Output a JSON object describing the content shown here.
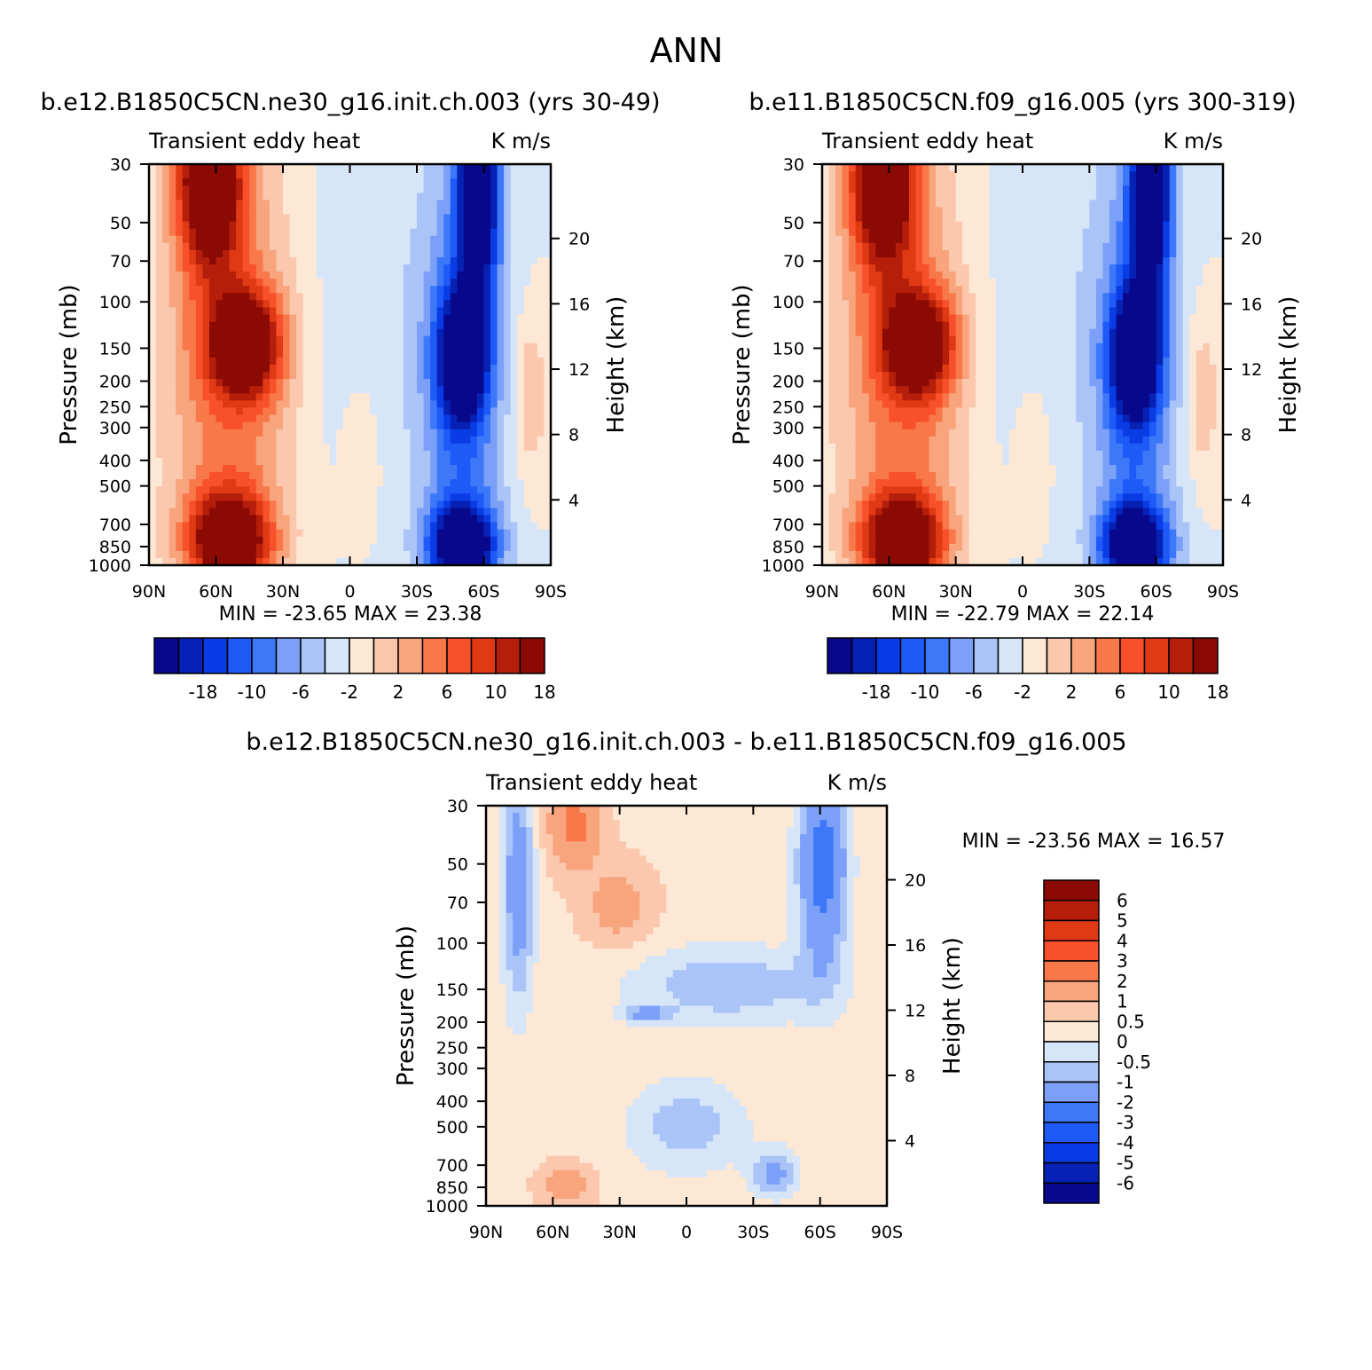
{
  "figure": {
    "title": "ANN"
  },
  "colors": {
    "levels_main": [
      "#08088c",
      "#0622b4",
      "#0a3ce6",
      "#1e5af8",
      "#3c78f8",
      "#7ca0f8",
      "#aac4f8",
      "#d6e6f8",
      "#fde8d6",
      "#fbc8ae",
      "#f8a47c",
      "#f8784a",
      "#f8502a",
      "#e03a14",
      "#b41e0a",
      "#8c0a04"
    ],
    "levels_diff": [
      "#08088c",
      "#0622b4",
      "#0a3ce6",
      "#1e5af8",
      "#3c78f8",
      "#7ca0f8",
      "#aac4f8",
      "#d6e6f8",
      "#fde8d6",
      "#fbc8ae",
      "#f8a47c",
      "#f8784a",
      "#f8502a",
      "#e03a14",
      "#b41e0a",
      "#8c0a04"
    ]
  },
  "chart_data": [
    {
      "type": "heatmap",
      "title": "b.e12.B1850C5CN.ne30_g16.init.ch.003 (yrs 30-49)",
      "left_label": "Transient eddy heat",
      "right_label": "K m/s",
      "ylabel": "Pressure (mb)",
      "ylabel_right": "Height (km)",
      "x_ticks": [
        "90N",
        "60N",
        "30N",
        "0",
        "30S",
        "60S",
        "90S"
      ],
      "y_ticks": [
        "30",
        "50",
        "70",
        "100",
        "150",
        "200",
        "250",
        "300",
        "400",
        "500",
        "700",
        "850",
        "1000"
      ],
      "y_ticks_right": [
        "20",
        "16",
        "12",
        "8",
        "4"
      ],
      "stats": "MIN = -23.65   MAX =  23.38",
      "colorbar_labels": [
        "-18",
        "-10",
        "-6",
        "-2",
        "2",
        "6",
        "10",
        "18"
      ]
    },
    {
      "type": "heatmap",
      "title": "b.e11.B1850C5CN.f09_g16.005 (yrs 300-319)",
      "left_label": "Transient eddy heat",
      "right_label": "K m/s",
      "ylabel": "Pressure (mb)",
      "ylabel_right": "Height (km)",
      "x_ticks": [
        "90N",
        "60N",
        "30N",
        "0",
        "30S",
        "60S",
        "90S"
      ],
      "y_ticks": [
        "30",
        "50",
        "70",
        "100",
        "150",
        "200",
        "250",
        "300",
        "400",
        "500",
        "700",
        "850",
        "1000"
      ],
      "y_ticks_right": [
        "20",
        "16",
        "12",
        "8",
        "4"
      ],
      "stats": "MIN = -22.79   MAX =  22.14",
      "colorbar_labels": [
        "-18",
        "-10",
        "-6",
        "-2",
        "2",
        "6",
        "10",
        "18"
      ]
    },
    {
      "type": "heatmap",
      "title": "b.e12.B1850C5CN.ne30_g16.init.ch.003 - b.e11.B1850C5CN.f09_g16.005",
      "left_label": "Transient eddy heat",
      "right_label": "K m/s",
      "ylabel": "Pressure (mb)",
      "ylabel_right": "Height (km)",
      "x_ticks": [
        "90N",
        "60N",
        "30N",
        "0",
        "30S",
        "60S",
        "90S"
      ],
      "y_ticks": [
        "30",
        "50",
        "70",
        "100",
        "150",
        "200",
        "250",
        "300",
        "400",
        "500",
        "700",
        "850",
        "1000"
      ],
      "y_ticks_right": [
        "20",
        "16",
        "12",
        "8",
        "4"
      ],
      "stats": "MIN = -23.56   MAX =  16.57",
      "colorbar_labels": [
        "6",
        "5",
        "4",
        "3",
        "2",
        "1",
        "0.5",
        "0",
        "-0.5",
        "-1",
        "-2",
        "-3",
        "-4",
        "-5",
        "-6"
      ]
    }
  ]
}
